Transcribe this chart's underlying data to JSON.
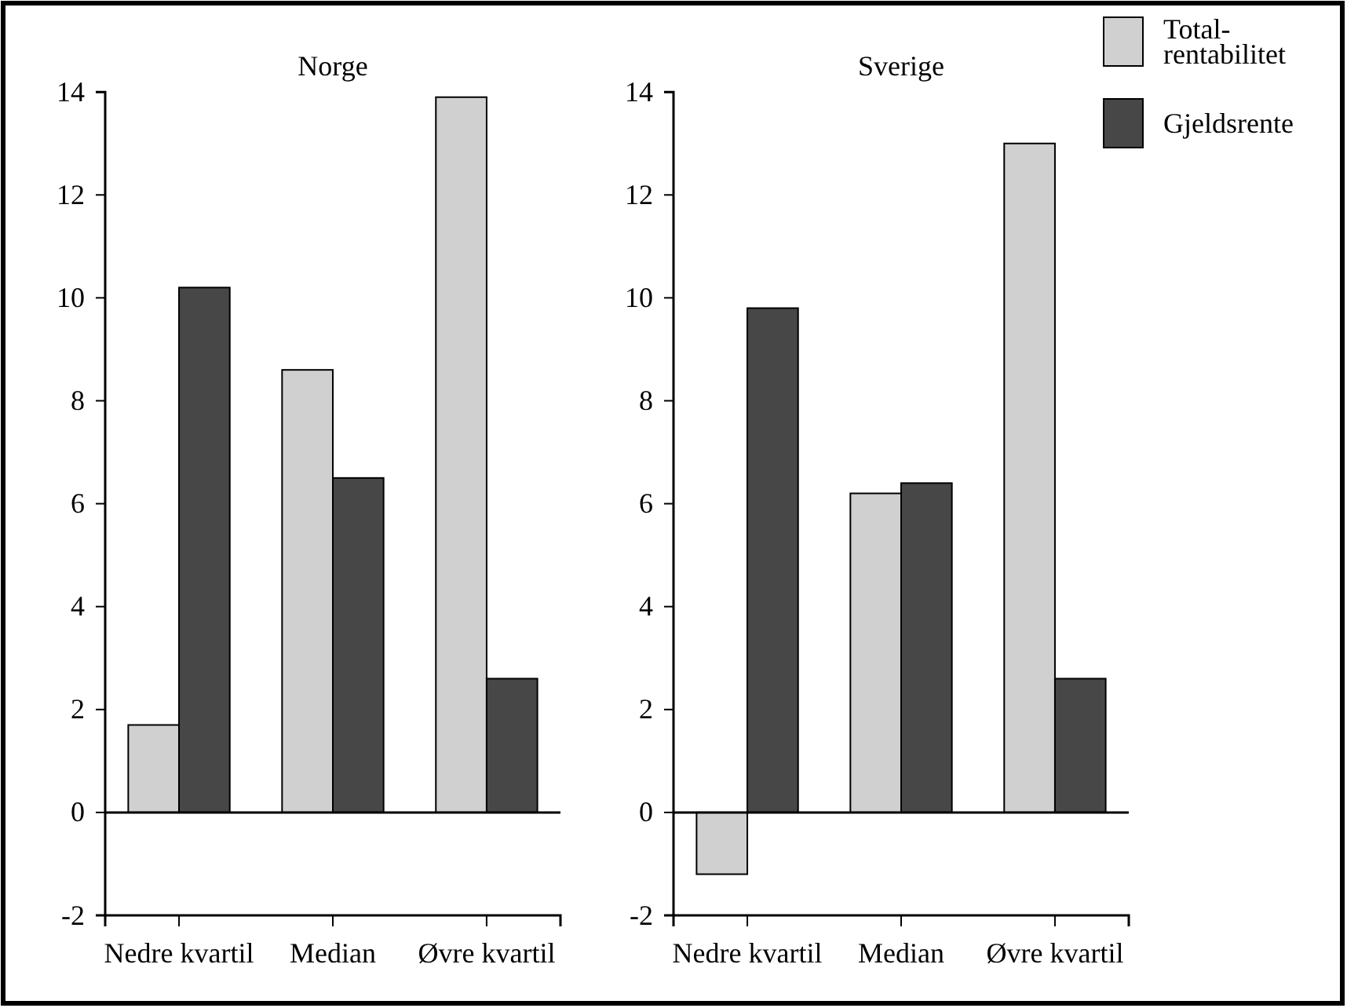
{
  "chart_data": [
    {
      "type": "bar",
      "title": "Norge",
      "categories": [
        "Nedre kvartil",
        "Median",
        "Øvre kvartil"
      ],
      "series": [
        {
          "color": "#d0d0d0",
          "values": [
            1.7,
            8.6,
            13.9
          ]
        },
        {
          "color": "#474747",
          "values": [
            10.2,
            6.5,
            2.6
          ]
        }
      ],
      "ylim": [
        -2,
        14
      ],
      "yticks": [
        -2,
        0,
        2,
        4,
        6,
        8,
        10,
        12,
        14
      ],
      "ref_lines": [
        {
          "axis": "y",
          "value": 0
        }
      ],
      "grid": false,
      "legend": false
    },
    {
      "type": "bar",
      "title": "Sverige",
      "categories": [
        "Nedre kvartil",
        "Median",
        "Øvre kvartil"
      ],
      "series": [
        {
          "name": "Total-rentabilitet",
          "color": "#d0d0d0",
          "values": [
            -1.2,
            6.2,
            13.0
          ]
        },
        {
          "name": "Gjeldsrente",
          "color": "#474747",
          "values": [
            9.8,
            6.4,
            2.6
          ]
        }
      ],
      "ylim": [
        -2,
        14
      ],
      "yticks": [
        -2,
        0,
        2,
        4,
        6,
        8,
        10,
        12,
        14
      ],
      "ref_lines": [
        {
          "axis": "y",
          "value": 0
        }
      ],
      "grid": false,
      "legend": "top right"
    }
  ]
}
